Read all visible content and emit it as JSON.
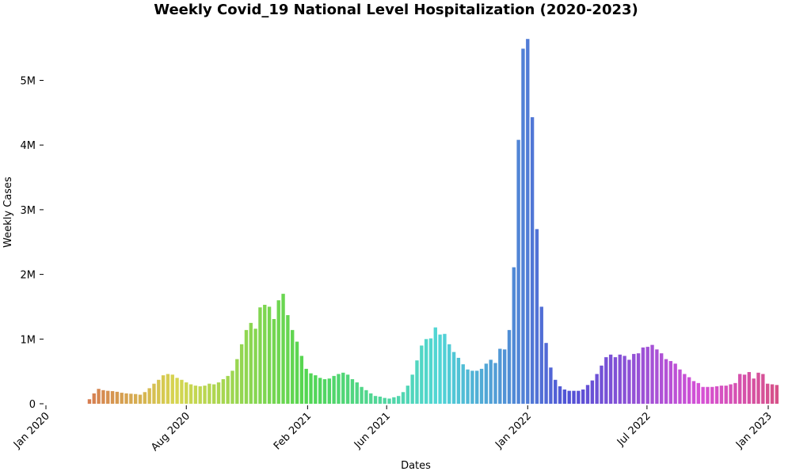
{
  "chart_data": {
    "type": "bar",
    "title": "Weekly Covid_19 National Level Hospitalization (2020-2023)",
    "xlabel": "Dates",
    "ylabel": "Weekly Cases",
    "x_tick_labels": [
      "Jan 2020",
      "Aug 2020",
      "Feb 2021",
      "Jun 2021",
      "Jan 2022",
      "Jul 2022",
      "Jan 2023"
    ],
    "y_ticks": [
      {
        "value": 0,
        "label": "0"
      },
      {
        "value": 1000000,
        "label": "1M"
      },
      {
        "value": 2000000,
        "label": "2M"
      },
      {
        "value": 3000000,
        "label": "3M"
      },
      {
        "value": 4000000,
        "label": "4M"
      },
      {
        "value": 5000000,
        "label": "5M"
      }
    ],
    "ylim": [
      0,
      5700000
    ],
    "grid": false,
    "first_week": "2020-03-07",
    "week_step_days": 7,
    "values": [
      70000,
      160000,
      230000,
      210000,
      200000,
      195000,
      185000,
      170000,
      160000,
      155000,
      150000,
      140000,
      180000,
      240000,
      310000,
      370000,
      440000,
      460000,
      450000,
      400000,
      370000,
      330000,
      300000,
      280000,
      270000,
      280000,
      310000,
      300000,
      330000,
      380000,
      430000,
      510000,
      690000,
      920000,
      1140000,
      1250000,
      1160000,
      1490000,
      1530000,
      1500000,
      1310000,
      1600000,
      1700000,
      1370000,
      1140000,
      960000,
      740000,
      540000,
      470000,
      440000,
      400000,
      380000,
      390000,
      430000,
      460000,
      480000,
      450000,
      380000,
      330000,
      260000,
      210000,
      160000,
      120000,
      110000,
      90000,
      80000,
      100000,
      120000,
      180000,
      280000,
      450000,
      670000,
      900000,
      1000000,
      1010000,
      1180000,
      1070000,
      1080000,
      920000,
      800000,
      710000,
      610000,
      530000,
      510000,
      510000,
      540000,
      620000,
      680000,
      630000,
      850000,
      840000,
      1140000,
      2110000,
      4080000,
      5490000,
      5640000,
      4430000,
      2700000,
      1500000,
      940000,
      560000,
      370000,
      270000,
      220000,
      200000,
      200000,
      200000,
      220000,
      290000,
      360000,
      460000,
      590000,
      720000,
      760000,
      720000,
      760000,
      740000,
      680000,
      770000,
      780000,
      870000,
      880000,
      910000,
      840000,
      780000,
      690000,
      660000,
      620000,
      530000,
      460000,
      410000,
      350000,
      320000,
      260000,
      260000,
      260000,
      270000,
      280000,
      280000,
      300000,
      320000,
      460000,
      450000,
      490000,
      390000,
      480000,
      460000,
      310000,
      300000,
      290000
    ],
    "palette_hue_start": 20,
    "palette_hue_end": 335,
    "palette_saturation": 62,
    "palette_lightness": 58
  }
}
